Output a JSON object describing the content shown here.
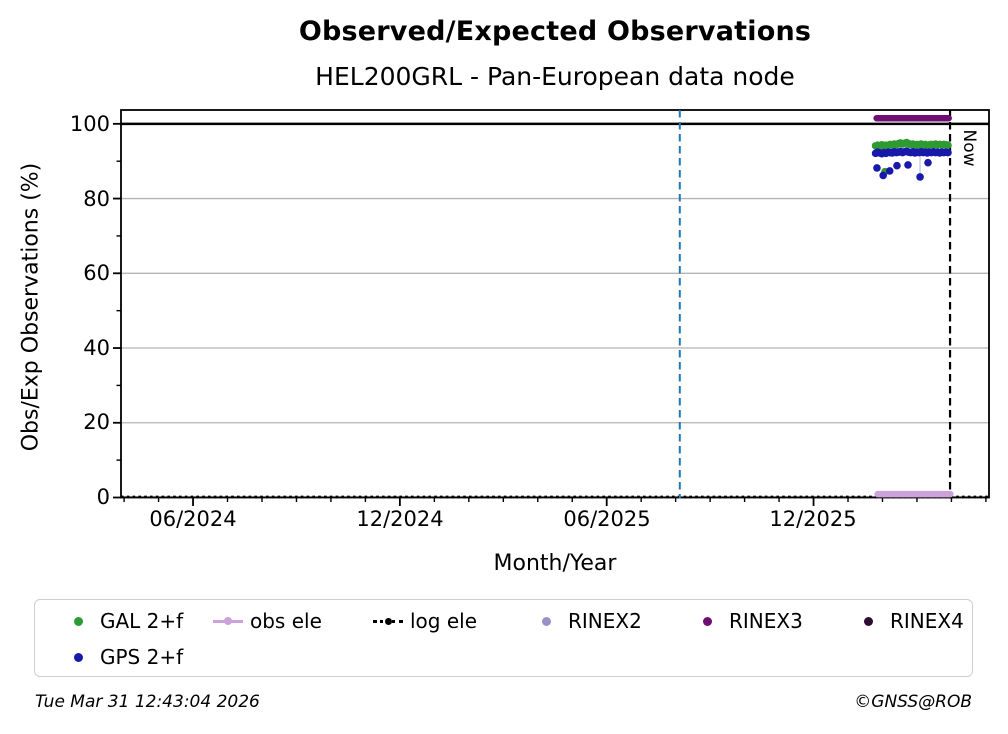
{
  "page": {
    "title": "Observed/Expected Observations",
    "subtitle": "HEL200GRL - Pan-European data node",
    "footer_timestamp": "Tue Mar 31 12:43:04 2026",
    "footer_copyright": "©GNSS@ROB"
  },
  "colors": {
    "gal": "#2e9a32",
    "gps": "#1818aa",
    "obs_ele": "#cda2da",
    "log_ele": "#000000",
    "rinex2": "#9a8fcb",
    "rinex3": "#6e0e72",
    "rinex4": "#2f0c34",
    "event_line": "#1f77b4",
    "now_line": "#000000",
    "grid": "#b5b5b5",
    "ref_100": "#000000",
    "connector": "#b9c6ea"
  },
  "annotations": {
    "now_label": "Now"
  },
  "chart_data": {
    "type": "scatter",
    "title": "Observed/Expected Observations",
    "subtitle": "HEL200GRL - Pan-European data node",
    "xlabel": "Month/Year",
    "ylabel": "Obs/Exp Observations (%)",
    "grid": "major horizontal, light gray",
    "legend_position": "below axes, 6 columns",
    "x_axis": {
      "unit": "months since 2024-01-01",
      "min": 2.91,
      "max": 28.09,
      "major_ticks": [
        {
          "month": 5,
          "label": "06/2024"
        },
        {
          "month": 11,
          "label": "12/2024"
        },
        {
          "month": 17,
          "label": "06/2025"
        },
        {
          "month": 23,
          "label": "12/2025"
        }
      ],
      "minor_tick_months": [
        3,
        4,
        6,
        7,
        8,
        9,
        10,
        12,
        13,
        14,
        15,
        16,
        18,
        19,
        20,
        21,
        22,
        24,
        25,
        26,
        27,
        28
      ]
    },
    "y_axis": {
      "min": 0,
      "max": 103.7,
      "major_ticks": [
        0,
        20,
        40,
        60,
        80,
        100
      ],
      "major_tick_labels": [
        "0",
        "20",
        "40",
        "60",
        "80",
        "100"
      ],
      "minor_ticks": [
        10,
        30,
        50,
        70,
        90
      ]
    },
    "reference_lines": [
      {
        "name": "expected-100",
        "orientation": "h",
        "y": 100,
        "style": "solid",
        "width": 2.5,
        "color_key": "ref_100"
      },
      {
        "name": "log ele",
        "orientation": "h",
        "y": 0.15,
        "style": "dotted",
        "width": 2.6,
        "color_key": "log_ele"
      },
      {
        "name": "event",
        "orientation": "v",
        "x": 19.12,
        "style": "dashed",
        "width": 2,
        "color_key": "event_line"
      },
      {
        "name": "now",
        "orientation": "v",
        "x": 26.96,
        "style": "dashed",
        "width": 2.2,
        "color_key": "now_line",
        "label": "Now"
      }
    ],
    "series": [
      {
        "name": "GAL 2+f",
        "kind": "scatter",
        "color_key": "gal",
        "points": [
          [
            24.8,
            94.1
          ],
          [
            24.86,
            94.3
          ],
          [
            24.92,
            94.0
          ],
          [
            24.98,
            94.4
          ],
          [
            25.04,
            94.2
          ],
          [
            25.07,
            87.2
          ],
          [
            25.1,
            94.3
          ],
          [
            25.16,
            94.1
          ],
          [
            25.22,
            94.5
          ],
          [
            25.28,
            94.3
          ],
          [
            25.34,
            94.6
          ],
          [
            25.4,
            94.4
          ],
          [
            25.46,
            94.7
          ],
          [
            25.52,
            94.9
          ],
          [
            25.58,
            94.6
          ],
          [
            25.64,
            94.8
          ],
          [
            25.7,
            95.0
          ],
          [
            25.76,
            94.7
          ],
          [
            25.82,
            94.5
          ],
          [
            25.88,
            94.6
          ],
          [
            25.94,
            94.3
          ],
          [
            26.0,
            94.5
          ],
          [
            26.06,
            94.4
          ],
          [
            26.12,
            94.6
          ],
          [
            26.18,
            94.3
          ],
          [
            26.24,
            94.5
          ],
          [
            26.3,
            94.2
          ],
          [
            26.36,
            94.4
          ],
          [
            26.42,
            94.5
          ],
          [
            26.48,
            94.3
          ],
          [
            26.54,
            94.6
          ],
          [
            26.6,
            94.4
          ],
          [
            26.66,
            94.5
          ],
          [
            26.72,
            94.3
          ],
          [
            26.78,
            94.5
          ],
          [
            26.84,
            94.4
          ],
          [
            26.9,
            94.3
          ]
        ]
      },
      {
        "name": "GPS 2+f",
        "kind": "scatter",
        "color_key": "gps",
        "points": [
          [
            24.8,
            92.1
          ],
          [
            24.84,
            88.2
          ],
          [
            24.86,
            92.4
          ],
          [
            24.92,
            92.2
          ],
          [
            24.98,
            92.0
          ],
          [
            25.02,
            86.2
          ],
          [
            25.04,
            92.3
          ],
          [
            25.1,
            92.1
          ],
          [
            25.16,
            92.4
          ],
          [
            25.21,
            87.4
          ],
          [
            25.22,
            92.3
          ],
          [
            25.28,
            92.2
          ],
          [
            25.34,
            92.5
          ],
          [
            25.4,
            92.3
          ],
          [
            25.42,
            88.8
          ],
          [
            25.46,
            92.4
          ],
          [
            25.52,
            92.6
          ],
          [
            25.58,
            92.3
          ],
          [
            25.64,
            92.5
          ],
          [
            25.7,
            92.7
          ],
          [
            25.74,
            89.0
          ],
          [
            25.76,
            92.4
          ],
          [
            25.82,
            92.3
          ],
          [
            25.88,
            92.5
          ],
          [
            25.94,
            92.2
          ],
          [
            26.0,
            92.4
          ],
          [
            26.06,
            92.3
          ],
          [
            26.09,
            85.8
          ],
          [
            26.12,
            92.5
          ],
          [
            26.18,
            92.3
          ],
          [
            26.24,
            92.4
          ],
          [
            26.3,
            92.2
          ],
          [
            26.32,
            89.6
          ],
          [
            26.36,
            92.4
          ],
          [
            26.42,
            92.3
          ],
          [
            26.48,
            92.5
          ],
          [
            26.54,
            92.3
          ],
          [
            26.6,
            92.4
          ],
          [
            26.66,
            92.2
          ],
          [
            26.72,
            92.4
          ],
          [
            26.78,
            92.3
          ],
          [
            26.84,
            92.4
          ],
          [
            26.9,
            92.3
          ]
        ],
        "connectors": [
          [
            26.09,
            92.3,
            26.09,
            85.8
          ]
        ]
      },
      {
        "name": "obs ele",
        "kind": "line",
        "width": 6.5,
        "color_key": "obs_ele",
        "points": [
          [
            24.86,
            0.9
          ],
          [
            26.97,
            0.9
          ]
        ]
      },
      {
        "name": "log ele",
        "kind": "reference",
        "color_key": "log_ele",
        "points": []
      },
      {
        "name": "RINEX2",
        "kind": "scatter",
        "color_key": "rinex2",
        "points": []
      },
      {
        "name": "RINEX3",
        "kind": "line",
        "width": 6.5,
        "color_key": "rinex3",
        "points": [
          [
            24.83,
            101.5
          ],
          [
            26.92,
            101.5
          ]
        ]
      },
      {
        "name": "RINEX4",
        "kind": "scatter",
        "color_key": "rinex4",
        "points": []
      }
    ]
  },
  "legend": {
    "items": [
      {
        "label": "GAL 2+f",
        "marker": "dot",
        "color_key": "gal"
      },
      {
        "label": "GPS 2+f",
        "marker": "dot",
        "color_key": "gps"
      },
      {
        "label": "obs ele",
        "marker": "line-dot",
        "color_key": "obs_ele"
      },
      {
        "label": "log ele",
        "marker": "dotted-dot",
        "color_key": "log_ele"
      },
      {
        "label": "RINEX2",
        "marker": "dot",
        "color_key": "rinex2"
      },
      {
        "label": "RINEX3",
        "marker": "dot",
        "color_key": "rinex3"
      },
      {
        "label": "RINEX4",
        "marker": "dot",
        "color_key": "rinex4"
      }
    ]
  }
}
